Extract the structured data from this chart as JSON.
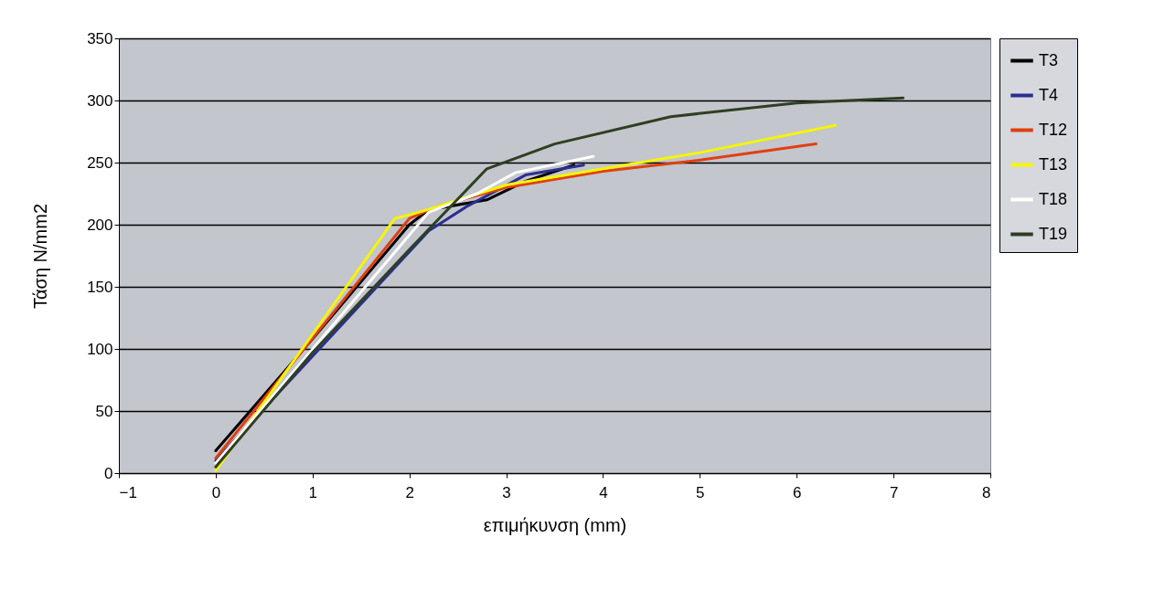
{
  "chart_data": {
    "type": "line",
    "xlabel": "επιμήκυνση (mm)",
    "ylabel": "Τάση N/mm2",
    "xlim": [
      -1,
      8
    ],
    "xticks": [
      -1,
      0,
      1,
      2,
      3,
      4,
      5,
      6,
      7,
      8
    ],
    "ylim": [
      0,
      350
    ],
    "yticks": [
      0,
      50,
      100,
      150,
      200,
      250,
      300,
      350
    ],
    "grid": "y",
    "legend": "right",
    "marker": "none",
    "line_style": "solid",
    "series": [
      {
        "name": "T3",
        "color": "#000000",
        "x": [
          0,
          1,
          2,
          2.2,
          2.8,
          3.2,
          3.7
        ],
        "values": [
          18,
          108,
          200,
          212,
          220,
          235,
          248
        ]
      },
      {
        "name": "T4",
        "color": "#2b2f8f",
        "x": [
          0,
          2.2,
          2.6,
          3.2,
          3.8
        ],
        "values": [
          10,
          195,
          215,
          240,
          248
        ]
      },
      {
        "name": "T12",
        "color": "#e04010",
        "x": [
          0,
          2,
          2.3,
          3,
          4,
          5,
          6.2
        ],
        "values": [
          12,
          205,
          215,
          230,
          243,
          252,
          265
        ]
      },
      {
        "name": "T13",
        "color": "#f5f500",
        "x": [
          0,
          1.85,
          2.1,
          3,
          4,
          5,
          6.4
        ],
        "values": [
          2,
          205,
          210,
          232,
          245,
          258,
          280
        ]
      },
      {
        "name": "T18",
        "color": "#ffffff",
        "x": [
          0,
          2.2,
          2.7,
          3.1,
          3.9
        ],
        "values": [
          8,
          210,
          225,
          242,
          255
        ]
      },
      {
        "name": "T19",
        "color": "#2f3f22",
        "x": [
          0,
          1,
          2,
          2.8,
          3.5,
          4.7,
          6,
          7.1
        ],
        "values": [
          5,
          97,
          180,
          245,
          265,
          287,
          298,
          302
        ]
      }
    ]
  }
}
